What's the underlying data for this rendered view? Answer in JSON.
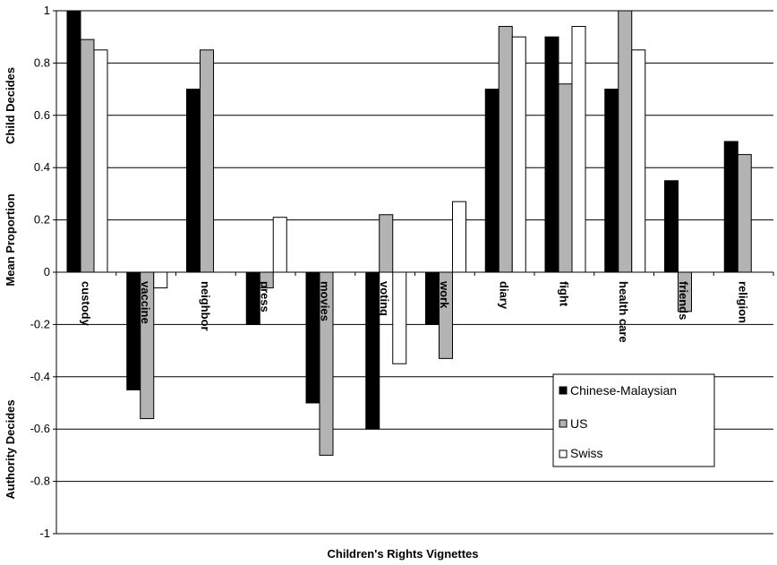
{
  "chart_data": {
    "type": "bar",
    "categories": [
      "custody",
      "vaccine",
      "neighbor",
      "press",
      "movies",
      "voting",
      "work",
      "diary",
      "fight",
      "health care",
      "friends",
      "religion"
    ],
    "series": [
      {
        "name": "Chinese-Malaysian",
        "color": "#000000",
        "values": [
          1.0,
          -0.45,
          0.7,
          -0.2,
          -0.5,
          -0.6,
          -0.2,
          0.7,
          0.9,
          0.7,
          0.35,
          0.5
        ]
      },
      {
        "name": "US",
        "color": "#b3b3b3",
        "values": [
          0.89,
          -0.56,
          0.85,
          -0.06,
          -0.7,
          0.22,
          -0.33,
          0.94,
          0.72,
          1.0,
          -0.15,
          0.45
        ]
      },
      {
        "name": "Swiss",
        "color": "#ffffff",
        "values": [
          0.85,
          -0.06,
          null,
          0.21,
          null,
          -0.35,
          0.27,
          0.9,
          0.94,
          0.85,
          null,
          null
        ]
      }
    ],
    "xlabel": "Children's Rights Vignettes",
    "ylabel_parts": [
      "Authority Decides",
      "Mean Proportion",
      "Child Decides"
    ],
    "ylim": [
      -1,
      1
    ],
    "yticks": [
      "-1",
      "-0.8",
      "-0.6",
      "-0.4",
      "-0.2",
      "0",
      "0.2",
      "0.4",
      "0.6",
      "0.8",
      "1"
    ],
    "grid": true,
    "legend_position": "lower-right"
  }
}
